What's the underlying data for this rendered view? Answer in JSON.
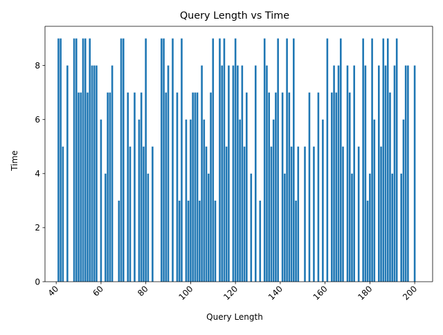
{
  "chart_data": {
    "type": "bar",
    "title": "Query Length vs Time",
    "xlabel": "Query Length",
    "ylabel": "Time",
    "xlim": [
      35,
      208
    ],
    "ylim": [
      0,
      9.45
    ],
    "xticks": [
      40,
      60,
      80,
      100,
      120,
      140,
      160,
      180,
      200
    ],
    "yticks": [
      0,
      2,
      4,
      6,
      8
    ],
    "grid": false,
    "legend": "none",
    "bar_color": "#1f77b4",
    "x": [
      41,
      42,
      43,
      45,
      48,
      49,
      50,
      51,
      52,
      53,
      54,
      55,
      56,
      57,
      58,
      60,
      62,
      63,
      64,
      65,
      68,
      69,
      70,
      72,
      73,
      75,
      77,
      78,
      79,
      80,
      81,
      83,
      87,
      88,
      89,
      90,
      92,
      94,
      95,
      96,
      98,
      99,
      100,
      101,
      102,
      103,
      104,
      105,
      106,
      107,
      108,
      109,
      110,
      111,
      113,
      114,
      115,
      116,
      117,
      119,
      120,
      121,
      122,
      123,
      124,
      125,
      127,
      129,
      131,
      133,
      134,
      135,
      136,
      137,
      138,
      139,
      141,
      142,
      143,
      144,
      145,
      146,
      147,
      148,
      151,
      153,
      155,
      157,
      159,
      161,
      163,
      164,
      165,
      166,
      167,
      168,
      170,
      171,
      172,
      173,
      175,
      177,
      178,
      179,
      180,
      181,
      182,
      184,
      185,
      186,
      187,
      188,
      189,
      190,
      191,
      192,
      194,
      195,
      196,
      197,
      200
    ],
    "values": [
      9,
      9,
      5,
      8,
      9,
      9,
      7,
      7,
      9,
      9,
      7,
      9,
      8,
      8,
      8,
      6,
      4,
      7,
      7,
      8,
      3,
      9,
      9,
      7,
      5,
      7,
      6,
      7,
      5,
      9,
      4,
      5,
      9,
      9,
      7,
      8,
      9,
      7,
      3,
      9,
      6,
      3,
      6,
      7,
      7,
      7,
      3,
      8,
      6,
      5,
      4,
      7,
      9,
      3,
      9,
      8,
      9,
      5,
      8,
      8,
      9,
      8,
      6,
      8,
      5,
      7,
      4,
      8,
      3,
      9,
      8,
      7,
      5,
      6,
      7,
      9,
      7,
      4,
      9,
      7,
      5,
      9,
      3,
      5,
      5,
      7,
      5,
      7,
      6,
      9,
      7,
      8,
      7,
      8,
      9,
      5,
      8,
      7,
      4,
      8,
      5,
      9,
      8,
      3,
      4,
      9,
      6,
      8,
      5,
      9,
      8,
      9,
      7,
      4,
      8,
      9,
      4,
      6,
      8,
      8,
      8
    ]
  }
}
